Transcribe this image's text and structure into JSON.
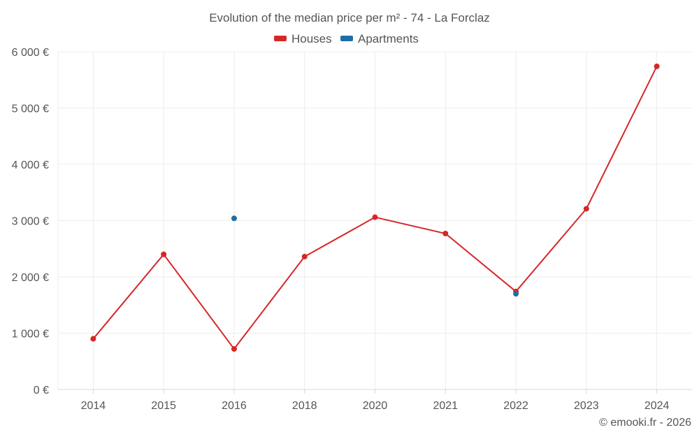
{
  "chart_data": {
    "type": "line",
    "title": "Evolution of the median price per m² - 74 - La Forclaz",
    "categories": [
      "2014",
      "2015",
      "2016",
      "2018",
      "2020",
      "2021",
      "2022",
      "2023",
      "2024"
    ],
    "ylim": [
      0,
      6000
    ],
    "yticks": [
      0,
      1000,
      2000,
      3000,
      4000,
      5000,
      6000
    ],
    "ytick_labels": [
      "0 €",
      "1 000 €",
      "2 000 €",
      "3 000 €",
      "4 000 €",
      "5 000 €",
      "6 000 €"
    ],
    "xlabel": "",
    "ylabel": "",
    "grid": true,
    "legend_position": "top-center",
    "series": [
      {
        "name": "Houses",
        "color": "#d62728",
        "mode": "line+markers",
        "values": [
          900,
          2400,
          720,
          2360,
          3060,
          2770,
          1740,
          3210,
          5740
        ]
      },
      {
        "name": "Apartments",
        "color": "#1f6fa5",
        "mode": "markers",
        "values": [
          null,
          null,
          3040,
          null,
          null,
          null,
          1700,
          null,
          null
        ]
      }
    ],
    "credit": "© emooki.fr - 2026"
  }
}
